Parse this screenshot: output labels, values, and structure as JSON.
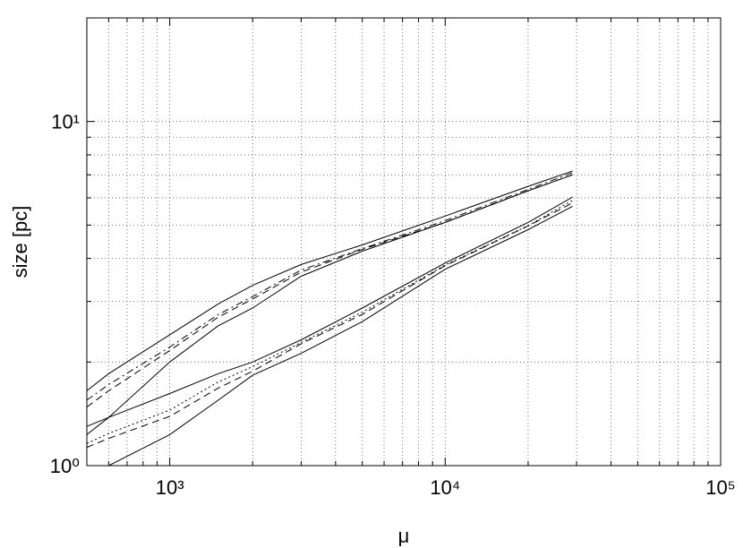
{
  "chart_data": {
    "type": "line",
    "xlabel": "μ",
    "ylabel": "size [pc]",
    "xlog": true,
    "ylog": true,
    "grid": true,
    "xlim": [
      500,
      100000
    ],
    "ylim": [
      1,
      20
    ],
    "xticks": [
      {
        "value": 1000,
        "label": "10³"
      },
      {
        "value": 10000,
        "label": "10⁴"
      },
      {
        "value": 100000,
        "label": "10⁵"
      }
    ],
    "yticks": [
      {
        "value": 1,
        "label": "10⁰"
      },
      {
        "value": 10,
        "label": "10¹"
      }
    ],
    "minor_xticks": [
      600,
      700,
      800,
      900,
      2000,
      3000,
      4000,
      5000,
      6000,
      7000,
      8000,
      9000,
      20000,
      30000,
      40000,
      50000,
      60000,
      70000,
      80000,
      90000
    ],
    "minor_yticks": [
      2,
      3,
      4,
      5,
      6,
      7,
      8,
      9,
      20
    ],
    "x": [
      500,
      600,
      1000,
      1500,
      2000,
      3000,
      5000,
      10000,
      20000,
      29000
    ],
    "series": [
      {
        "color": "#000000",
        "dash": "solid",
        "values": [
          1.65,
          1.85,
          2.4,
          2.95,
          3.34,
          3.84,
          4.38,
          5.31,
          6.48,
          7.18
        ]
      },
      {
        "color": "#000000",
        "dash": "solid",
        "values": [
          1.23,
          1.38,
          2.0,
          2.55,
          2.87,
          3.55,
          4.2,
          5.09,
          6.29,
          7.0
        ]
      },
      {
        "color": "#000000",
        "dash": "dashed",
        "values": [
          1.48,
          1.65,
          2.16,
          2.7,
          3.05,
          3.65,
          4.25,
          5.09,
          6.29,
          7.0
        ]
      },
      {
        "color": "#000000",
        "dash": "dashdot",
        "values": [
          1.55,
          1.72,
          2.21,
          2.75,
          3.1,
          3.7,
          4.27,
          5.15,
          6.35,
          7.1
        ]
      },
      {
        "color": "#000000",
        "dash": "solid",
        "values": [
          1.3,
          1.38,
          1.62,
          1.85,
          2.0,
          2.32,
          2.87,
          3.88,
          5.09,
          6.03
        ]
      },
      {
        "color": "#000000",
        "dash": "solid",
        "values": [
          null,
          1.0,
          1.23,
          1.55,
          1.83,
          2.12,
          2.62,
          3.72,
          4.85,
          5.67
        ]
      },
      {
        "color": "#000000",
        "dash": "dashed",
        "values": [
          1.13,
          1.2,
          1.39,
          1.68,
          1.88,
          2.26,
          2.75,
          3.81,
          4.97,
          5.8
        ]
      },
      {
        "color": "#000000",
        "dash": "dotted",
        "values": [
          1.16,
          1.24,
          1.45,
          1.75,
          1.94,
          2.28,
          2.79,
          3.83,
          4.98,
          5.9
        ]
      }
    ]
  }
}
